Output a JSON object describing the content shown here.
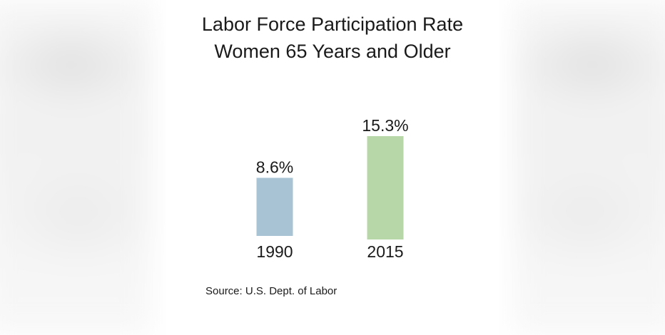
{
  "chart_data": {
    "type": "bar",
    "title": "Labor Force Participation Rate",
    "subtitle": "Women 65 Years and Older",
    "categories": [
      "1990",
      "2015"
    ],
    "values": [
      8.6,
      15.3
    ],
    "data_labels": [
      "8.6%",
      "15.3%"
    ],
    "colors": [
      "#a8c4d4",
      "#b7d7a8"
    ],
    "ylim": [
      0,
      15.3
    ],
    "grid": false,
    "source": "Source:  U.S. Dept. of Labor"
  }
}
